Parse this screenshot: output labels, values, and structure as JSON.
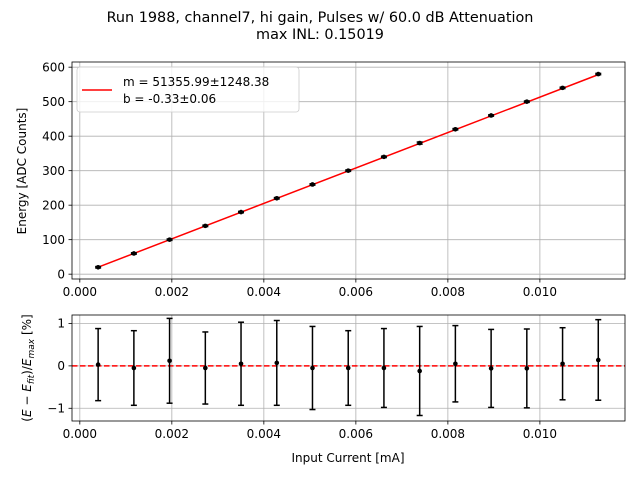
{
  "figure": {
    "title_line1": "Run 1988, channel7, hi gain, Pulses w/ 60.0 dB Attenuation",
    "title_line2": "max INL: 0.15019"
  },
  "chart_data": [
    {
      "type": "scatter",
      "ylabel": "Energy [ADC Counts]",
      "xlim": [
        -0.00017,
        0.01185
      ],
      "ylim": [
        -14,
        615
      ],
      "xticks": [
        "0.000",
        "0.002",
        "0.004",
        "0.006",
        "0.008",
        "0.010"
      ],
      "xtick_values": [
        0,
        0.002,
        0.004,
        0.006,
        0.008,
        0.01
      ],
      "yticks": [
        "0",
        "100",
        "200",
        "300",
        "400",
        "500",
        "600"
      ],
      "ytick_values": [
        0,
        100,
        200,
        300,
        400,
        500,
        600
      ],
      "grid": true,
      "legend_position": "upper left",
      "fit": {
        "name_line1": "m = 51355.99±1248.38",
        "name_line2": "b = -0.33±0.06",
        "slope": 51355.99,
        "intercept": -0.33,
        "color": "#ff0000"
      },
      "points": {
        "x": [
          0.000398,
          0.001175,
          0.001951,
          0.002728,
          0.003504,
          0.004281,
          0.005057,
          0.005834,
          0.00661,
          0.007387,
          0.008163,
          0.00894,
          0.009716,
          0.010493,
          0.011269
        ],
        "y": [
          20,
          60,
          100,
          140,
          180,
          220,
          260,
          300,
          340,
          380,
          420,
          460,
          500,
          540,
          580
        ],
        "yerr": [
          2,
          2,
          2,
          2,
          2,
          2,
          2,
          2,
          2,
          3,
          2,
          2,
          2,
          2,
          2
        ],
        "color": "#000000"
      }
    },
    {
      "type": "scatter",
      "xlabel": "Input Current [mA]",
      "ylabel": "(E − E_fit)/E_max [%]",
      "xlim": [
        -0.00017,
        0.01185
      ],
      "ylim": [
        -1.3,
        1.2
      ],
      "xticks": [
        "0.000",
        "0.002",
        "0.004",
        "0.006",
        "0.008",
        "0.010"
      ],
      "xtick_values": [
        0,
        0.002,
        0.004,
        0.006,
        0.008,
        0.01
      ],
      "yticks": [
        "−1",
        "0",
        "1"
      ],
      "ytick_values": [
        -1,
        0,
        1
      ],
      "grid": true,
      "zero_line_color": "#ff0000",
      "points": {
        "x": [
          0.000398,
          0.001175,
          0.001951,
          0.002728,
          0.003504,
          0.004281,
          0.005057,
          0.005834,
          0.00661,
          0.007387,
          0.008163,
          0.00894,
          0.009716,
          0.010493,
          0.011269
        ],
        "y": [
          0.03,
          -0.05,
          0.12,
          -0.05,
          0.05,
          0.07,
          -0.05,
          -0.05,
          -0.05,
          -0.12,
          0.05,
          -0.06,
          -0.06,
          0.05,
          0.14
        ],
        "yerr": [
          0.85,
          0.88,
          1.0,
          0.85,
          0.98,
          1.0,
          0.98,
          0.88,
          0.93,
          1.05,
          0.9,
          0.92,
          0.93,
          0.85,
          0.95
        ],
        "color": "#000000"
      }
    }
  ]
}
